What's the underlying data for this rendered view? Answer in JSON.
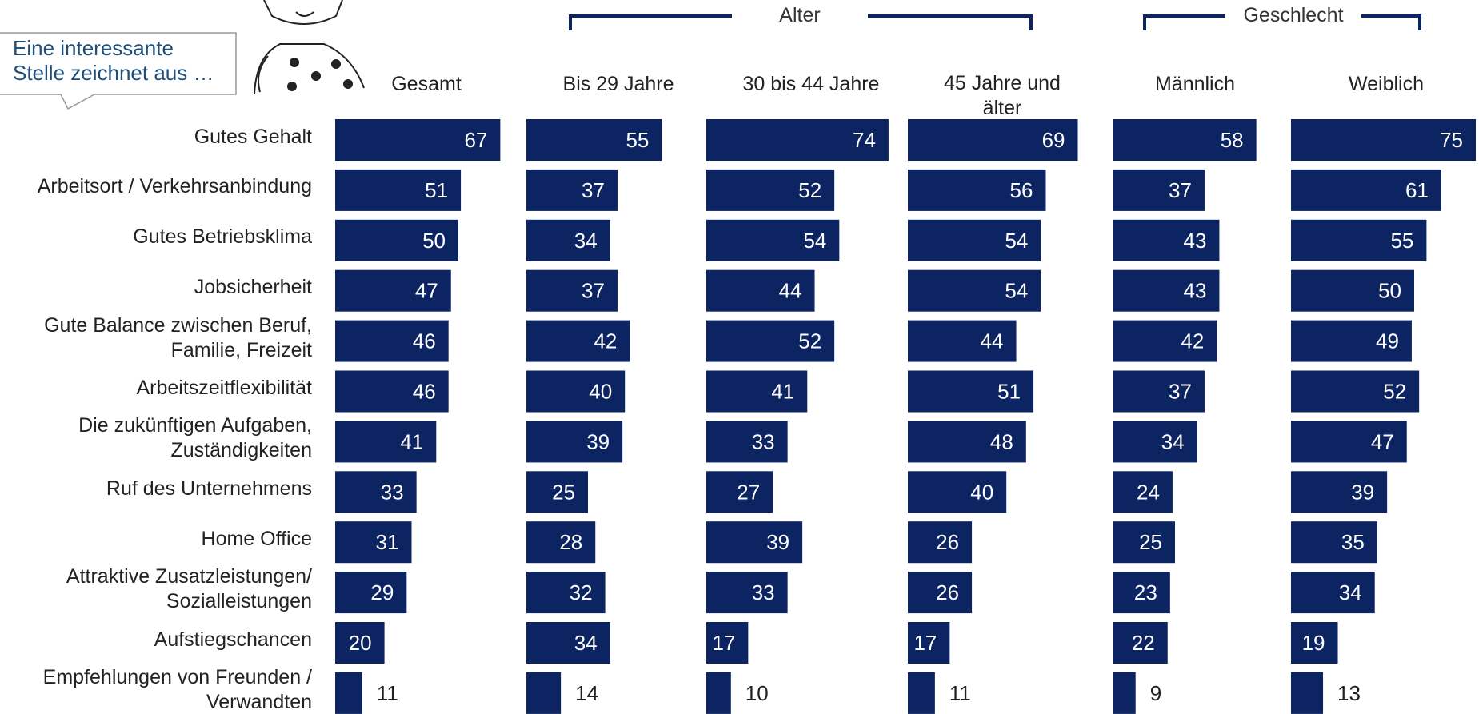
{
  "chart_data": {
    "type": "bar",
    "orientation": "horizontal",
    "color": "#0c2461",
    "callout": "Eine interessante\nStelle zeichnet aus …",
    "group_labels": [
      "Alter",
      "Geschlecht"
    ],
    "categories": [
      "Gutes Gehalt",
      "Arbeitsort / Verkehrsanbindung",
      "Gutes Betriebsklima",
      "Jobsicherheit",
      "Gute Balance zwischen Beruf,\nFamilie, Freizeit",
      "Arbeitszeitflexibilität",
      "Die zukünftigen Aufgaben,\nZuständigkeiten",
      "Ruf des Unternehmens",
      "Home Office",
      "Attraktive Zusatzleistungen/\nSozialleistungen",
      "Aufstiegschancen",
      "Empfehlungen von Freunden /\nVerwandten"
    ],
    "series": [
      {
        "name": "Gesamt",
        "values": [
          67,
          51,
          50,
          47,
          46,
          46,
          41,
          33,
          31,
          29,
          20,
          11
        ]
      },
      {
        "name": "Bis 29 Jahre",
        "values": [
          55,
          37,
          34,
          37,
          42,
          40,
          39,
          25,
          28,
          32,
          34,
          14
        ]
      },
      {
        "name": "30 bis 44 Jahre",
        "values": [
          74,
          52,
          54,
          44,
          52,
          41,
          33,
          27,
          39,
          33,
          17,
          10
        ]
      },
      {
        "name": "45 Jahre und\nälter",
        "values": [
          69,
          56,
          54,
          54,
          44,
          51,
          48,
          40,
          26,
          26,
          17,
          11
        ]
      },
      {
        "name": "Männlich",
        "values": [
          58,
          37,
          43,
          43,
          42,
          37,
          34,
          24,
          25,
          23,
          22,
          9
        ]
      },
      {
        "name": "Weiblich",
        "values": [
          75,
          61,
          55,
          50,
          49,
          52,
          47,
          39,
          35,
          34,
          19,
          13
        ]
      }
    ]
  }
}
